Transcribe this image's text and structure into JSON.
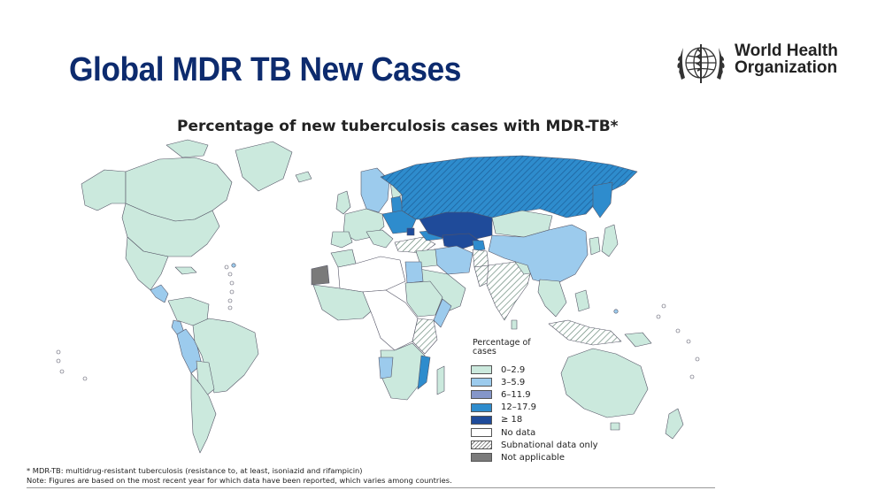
{
  "slide": {
    "title": "Global MDR TB New Cases"
  },
  "logo": {
    "line1": "World Health",
    "line2": "Organization"
  },
  "map": {
    "title": "Percentage of new tuberculosis cases with MDR-TB*",
    "colors": {
      "c0_2_9": "#cbe9dd",
      "c3_5_9": "#9ccbed",
      "c6_11_9": "#8596c9",
      "c12_17_9": "#2e8ccd",
      "c18": "#1f4b9a",
      "no_data": "#ffffff",
      "not_applicable": "#7a7a7a",
      "border": "#556"
    }
  },
  "legend": {
    "heading": "Percentage of cases",
    "items": [
      {
        "label": "0–2.9",
        "color": "#cbe9dd"
      },
      {
        "label": "3–5.9",
        "color": "#9ccbed"
      },
      {
        "label": "6–11.9",
        "color": "#8596c9"
      },
      {
        "label": "12–17.9",
        "color": "#2e8ccd"
      },
      {
        "label": "≥ 18",
        "color": "#1f4b9a"
      },
      {
        "label": "No data",
        "color": "#ffffff"
      },
      {
        "label": "Subnational data only",
        "color": "hatch"
      },
      {
        "label": "Not applicable",
        "color": "#7a7a7a"
      }
    ]
  },
  "footnotes": {
    "line1": "* MDR-TB: multidrug-resistant tuberculosis (resistance to, at least, isoniazid and rifampicin)",
    "line2": "Note: Figures are based on the most recent year for which data have been reported, which varies among countries."
  }
}
